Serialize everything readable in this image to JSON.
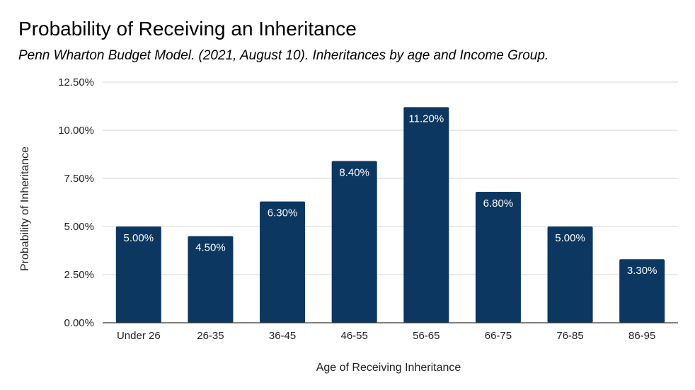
{
  "chart_data": {
    "type": "bar",
    "title": "Probability of Receiving an Inheritance",
    "subtitle": "Penn Wharton Budget Model. (2021, August 10). Inheritances by age and Income Group.",
    "xlabel": "Age of Receiving Inheritance",
    "ylabel": "Probability of Inheritance",
    "categories": [
      "Under 26",
      "26-35",
      "36-45",
      "46-55",
      "56-65",
      "66-75",
      "76-85",
      "86-95"
    ],
    "values": [
      5.0,
      4.5,
      6.3,
      8.4,
      11.2,
      6.8,
      5.0,
      3.3
    ],
    "data_labels": [
      "5.00%",
      "4.50%",
      "6.30%",
      "8.40%",
      "11.20%",
      "6.80%",
      "5.00%",
      "3.30%"
    ],
    "ylim": [
      0,
      12.5
    ],
    "y_ticks": [
      0,
      2.5,
      5.0,
      7.5,
      10.0,
      12.5
    ],
    "y_tick_labels": [
      "0.00%",
      "2.50%",
      "5.00%",
      "7.50%",
      "10.00%",
      "12.50%"
    ],
    "grid": true,
    "legend": "none",
    "bar_color": "#0b3761",
    "data_label_color": "#ffffff"
  }
}
